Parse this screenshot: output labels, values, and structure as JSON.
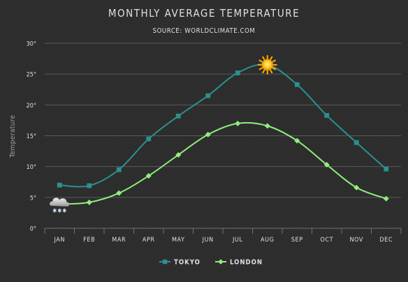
{
  "chart_data": {
    "type": "line",
    "title": "MONTHLY AVERAGE TEMPERATURE",
    "subtitle": "SOURCE: WORLDCLIMATE.COM",
    "xlabel": "",
    "ylabel": "Temperature",
    "categories": [
      "Jan",
      "Feb",
      "Mar",
      "Apr",
      "May",
      "Jun",
      "Jul",
      "Aug",
      "Sep",
      "Oct",
      "Nov",
      "Dec"
    ],
    "ylim": [
      0,
      30
    ],
    "yticks": [
      0,
      5,
      10,
      15,
      20,
      25,
      30
    ],
    "ytick_labels": [
      "0°",
      "5°",
      "10°",
      "15°",
      "20°",
      "25°",
      "30°"
    ],
    "grid": true,
    "legend_position": "bottom-center",
    "series": [
      {
        "name": "Tokyo",
        "color": "#2b908f",
        "marker": "square",
        "values": [
          7.0,
          6.9,
          9.5,
          14.5,
          18.2,
          21.5,
          25.2,
          26.5,
          23.3,
          18.3,
          13.9,
          9.6
        ]
      },
      {
        "name": "London",
        "color": "#90ee7e",
        "marker": "diamond",
        "values": [
          3.9,
          4.2,
          5.7,
          8.5,
          11.9,
          15.2,
          17.0,
          16.6,
          14.2,
          10.3,
          6.6,
          4.8
        ]
      }
    ],
    "annotations": [
      {
        "icon": "sun-icon",
        "series": "Tokyo",
        "category": "Aug"
      },
      {
        "icon": "snow-cloud-icon",
        "series": "London",
        "category": "Jan"
      }
    ]
  }
}
